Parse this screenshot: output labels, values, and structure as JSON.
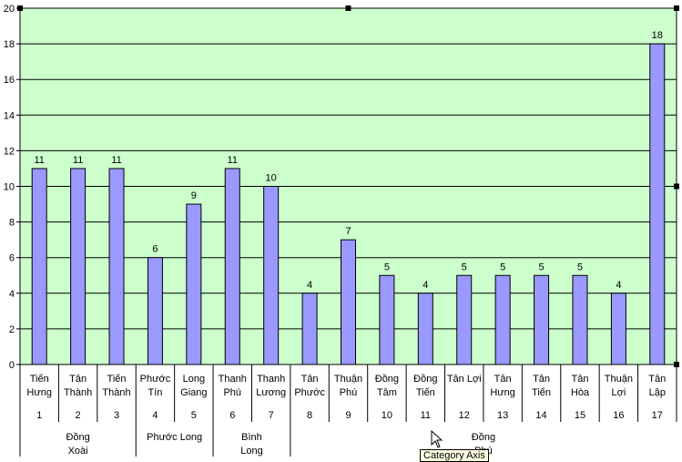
{
  "chart_data": {
    "type": "bar",
    "ylim": [
      0,
      20
    ],
    "yticks": [
      0,
      2,
      4,
      6,
      8,
      10,
      12,
      14,
      16,
      18,
      20
    ],
    "grid": true,
    "colors": {
      "plot_background": "#ccffcc",
      "bar_fill": "#9999ff",
      "bar_stroke": "#000000",
      "gridline": "#000000"
    },
    "categories": [
      {
        "name": [
          "Tiến",
          "Hưng"
        ],
        "index": "1",
        "value": 11
      },
      {
        "name": [
          "Tân",
          "Thành"
        ],
        "index": "2",
        "value": 11
      },
      {
        "name": [
          "Tiến",
          "Thành"
        ],
        "index": "3",
        "value": 11
      },
      {
        "name": [
          "Phước",
          "Tín"
        ],
        "index": "4",
        "value": 6
      },
      {
        "name": [
          "Long",
          "Giang"
        ],
        "index": "5",
        "value": 9
      },
      {
        "name": [
          "Thanh",
          "Phú"
        ],
        "index": "6",
        "value": 11
      },
      {
        "name": [
          "Thanh",
          "Lương"
        ],
        "index": "7",
        "value": 10
      },
      {
        "name": [
          "Tân",
          "Phước"
        ],
        "index": "8",
        "value": 4
      },
      {
        "name": [
          "Thuận",
          "Phú"
        ],
        "index": "9",
        "value": 7
      },
      {
        "name": [
          "Đồng",
          "Tâm"
        ],
        "index": "10",
        "value": 5
      },
      {
        "name": [
          "Đồng",
          "Tiến"
        ],
        "index": "11",
        "value": 4
      },
      {
        "name": [
          "Tân Lợi"
        ],
        "index": "12",
        "value": 5
      },
      {
        "name": [
          "Tân",
          "Hưng"
        ],
        "index": "13",
        "value": 5
      },
      {
        "name": [
          "Tân",
          "Tiến"
        ],
        "index": "14",
        "value": 5
      },
      {
        "name": [
          "Tân",
          "Hòa"
        ],
        "index": "15",
        "value": 5
      },
      {
        "name": [
          "Thuận",
          "Lợi"
        ],
        "index": "16",
        "value": 4
      },
      {
        "name": [
          "Tân",
          "Lập"
        ],
        "index": "17",
        "value": 18
      }
    ],
    "groups": [
      {
        "name": [
          "Đồng",
          "Xoài"
        ],
        "start": 0,
        "end": 3
      },
      {
        "name": [
          "Phước Long"
        ],
        "start": 3,
        "end": 5
      },
      {
        "name": [
          "Bình",
          "Long"
        ],
        "start": 5,
        "end": 7
      },
      {
        "name": [
          "Đồng",
          "Phú"
        ],
        "start": 7,
        "end": 17
      }
    ]
  },
  "tooltip": {
    "text": "Category Axis"
  },
  "icons": {
    "cursor": "mouse-pointer-icon"
  }
}
